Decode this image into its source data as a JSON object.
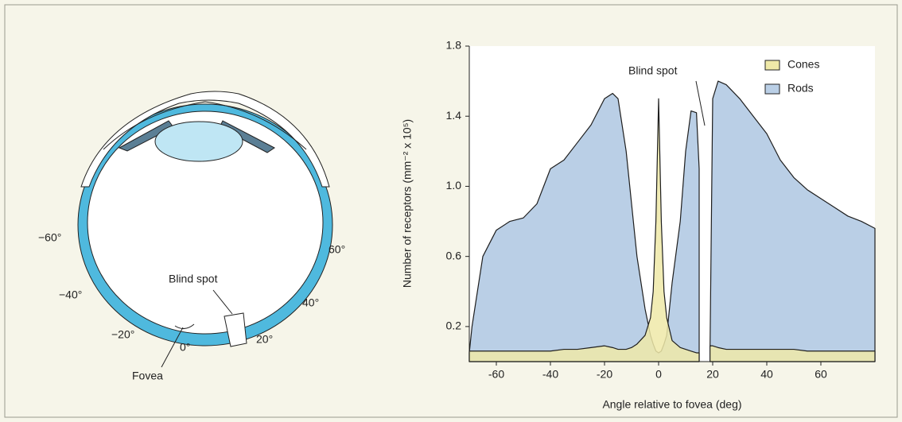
{
  "chart_data": {
    "type": "area",
    "xlabel": "Angle relative to fovea (deg)",
    "ylabel": "Number of receptors (mm⁻² x 10⁵)",
    "annotation": "Blind spot",
    "x": [
      -70,
      -69,
      -65,
      -60,
      -55,
      -50,
      -45,
      -40,
      -35,
      -30,
      -25,
      -20,
      -17,
      -15,
      -12,
      -10,
      -8,
      -5,
      -3,
      -2,
      -1,
      0,
      1,
      2,
      3,
      5,
      8,
      10,
      12,
      14,
      15,
      17,
      19,
      20,
      22,
      25,
      30,
      35,
      40,
      45,
      50,
      55,
      60,
      65,
      70,
      75,
      80
    ],
    "series": [
      {
        "name": "Rods",
        "color": "#bacfe6",
        "values": [
          0.05,
          0.2,
          0.6,
          0.75,
          0.8,
          0.82,
          0.9,
          1.1,
          1.15,
          1.25,
          1.35,
          1.5,
          1.53,
          1.5,
          1.2,
          0.9,
          0.6,
          0.3,
          0.15,
          0.1,
          0.06,
          0.05,
          0.06,
          0.1,
          0.15,
          0.45,
          0.8,
          1.2,
          1.43,
          1.42,
          1.1,
          null,
          0.05,
          1.5,
          1.6,
          1.58,
          1.5,
          1.4,
          1.3,
          1.15,
          1.05,
          0.98,
          0.93,
          0.88,
          0.83,
          0.8,
          0.76
        ]
      },
      {
        "name": "Cones",
        "color": "#efe9a8",
        "values": [
          0.06,
          0.06,
          0.06,
          0.06,
          0.06,
          0.06,
          0.06,
          0.06,
          0.07,
          0.07,
          0.08,
          0.09,
          0.08,
          0.07,
          0.07,
          0.08,
          0.1,
          0.15,
          0.25,
          0.4,
          0.8,
          1.5,
          0.8,
          0.4,
          0.25,
          0.12,
          0.08,
          0.07,
          0.06,
          0.05,
          0.05,
          null,
          0.09,
          0.09,
          0.08,
          0.07,
          0.07,
          0.07,
          0.07,
          0.07,
          0.07,
          0.06,
          0.06,
          0.06,
          0.06,
          0.06,
          0.06
        ]
      }
    ],
    "xlim": [
      -70,
      80
    ],
    "ylim": [
      0,
      1.8
    ],
    "xticks": [
      -60,
      -40,
      -20,
      0,
      20,
      40,
      60
    ],
    "yticks": [
      0.2,
      0.6,
      {
        "value": 1,
        "label": "1.0"
      },
      1.4,
      1.8
    ],
    "legend": "upper right"
  },
  "eye_diagram": {
    "angle_labels": [
      "−60°",
      "60°",
      "−40°",
      "40°",
      "−20°",
      "20°",
      "0°"
    ],
    "blind_spot": "Blind spot",
    "fovea": "Fovea"
  }
}
